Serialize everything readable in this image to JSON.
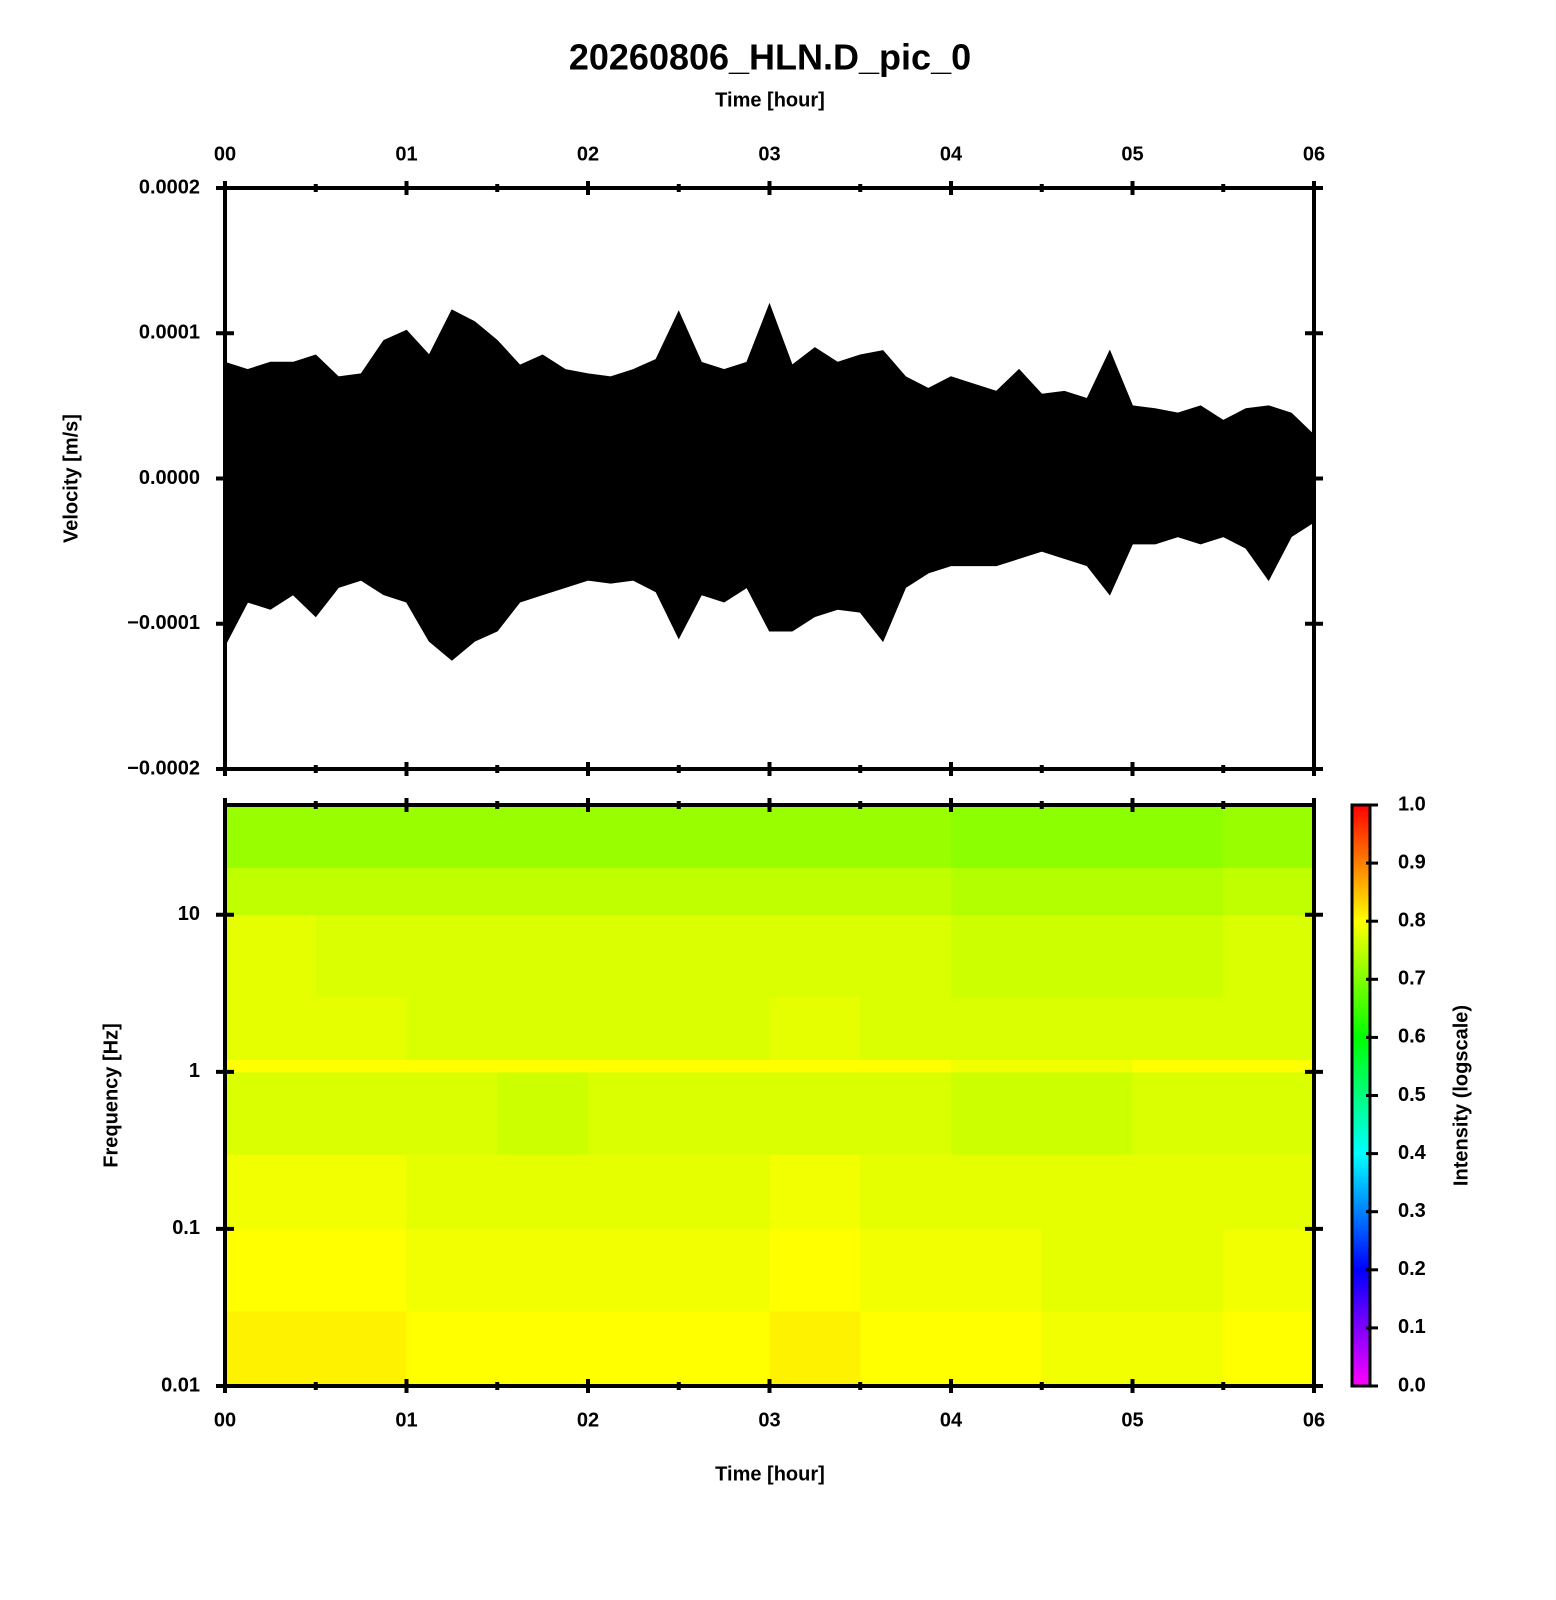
{
  "chart_data": [
    {
      "type": "band",
      "title": "20260806_HLN.D_pic_0",
      "xlabel": "Time [hour]",
      "xaxis_position": "top",
      "ylabel": "Velocity [m/s]",
      "color": "#000000",
      "xlim": [
        0,
        6
      ],
      "xticks": [
        {
          "value": 0,
          "label": "00"
        },
        {
          "value": 1,
          "label": "01"
        },
        {
          "value": 2,
          "label": "02"
        },
        {
          "value": 3,
          "label": "03"
        },
        {
          "value": 4,
          "label": "04"
        },
        {
          "value": 5,
          "label": "05"
        },
        {
          "value": 6,
          "label": "06"
        }
      ],
      "xticks_minor": [
        0.5,
        1.5,
        2.5,
        3.5,
        4.5,
        5.5
      ],
      "ylim": [
        -0.0002,
        0.0002
      ],
      "yticks": [
        {
          "value": -0.0002,
          "label": "−0.0002"
        },
        {
          "value": -0.0001,
          "label": "−0.0001"
        },
        {
          "value": 0,
          "label": "0.0000"
        },
        0.0001,
        0.0002
      ],
      "x": [
        0,
        0.125,
        0.25,
        0.375,
        0.5,
        0.625,
        0.75,
        0.875,
        1,
        1.125,
        1.25,
        1.375,
        1.5,
        1.625,
        1.75,
        1.875,
        2,
        2.125,
        2.25,
        2.375,
        2.5,
        2.625,
        2.75,
        2.875,
        3,
        3.125,
        3.25,
        3.375,
        3.5,
        3.625,
        3.75,
        3.875,
        4,
        4.125,
        4.25,
        4.375,
        4.5,
        4.625,
        4.75,
        4.875,
        5,
        5.125,
        5.25,
        5.375,
        5.5,
        5.625,
        5.75,
        5.875,
        6
      ],
      "max": [
        8e-05,
        7.5e-05,
        8e-05,
        8e-05,
        8.5e-05,
        7e-05,
        7.2e-05,
        9.5e-05,
        0.000102,
        8.5e-05,
        0.000116,
        0.000108,
        9.5e-05,
        7.8e-05,
        8.5e-05,
        7.5e-05,
        7.2e-05,
        7e-05,
        7.5e-05,
        8.2e-05,
        0.000115,
        8e-05,
        7.5e-05,
        8e-05,
        0.00012,
        7.8e-05,
        9e-05,
        8e-05,
        8.5e-05,
        8.8e-05,
        7e-05,
        6.2e-05,
        7e-05,
        6.5e-05,
        6e-05,
        7.5e-05,
        5.8e-05,
        6e-05,
        5.5e-05,
        8.8e-05,
        5e-05,
        4.8e-05,
        4.5e-05,
        5e-05,
        4e-05,
        4.8e-05,
        5e-05,
        4.5e-05,
        3e-05
      ],
      "min": [
        -0.000115,
        -8.5e-05,
        -9e-05,
        -8e-05,
        -9.5e-05,
        -7.5e-05,
        -7e-05,
        -8e-05,
        -8.5e-05,
        -0.000112,
        -0.000125,
        -0.000112,
        -0.000105,
        -8.5e-05,
        -8e-05,
        -7.5e-05,
        -7e-05,
        -7.2e-05,
        -7e-05,
        -7.8e-05,
        -0.00011,
        -8e-05,
        -8.5e-05,
        -7.5e-05,
        -0.000105,
        -0.000105,
        -9.5e-05,
        -9e-05,
        -9.2e-05,
        -0.000112,
        -7.5e-05,
        -6.5e-05,
        -6e-05,
        -6e-05,
        -6e-05,
        -5.5e-05,
        -5e-05,
        -5.5e-05,
        -6e-05,
        -8e-05,
        -4.5e-05,
        -4.5e-05,
        -4e-05,
        -4.5e-05,
        -4e-05,
        -4.8e-05,
        -7e-05,
        -4e-05,
        -3e-05
      ]
    },
    {
      "type": "heatmap",
      "xlabel": "Time [hour]",
      "xaxis_position": "bottom",
      "ylabel": "Frequency [Hz]",
      "log_y": true,
      "xlim": [
        0,
        6
      ],
      "xticks": [
        {
          "value": 0,
          "label": "00"
        },
        {
          "value": 1,
          "label": "01"
        },
        {
          "value": 2,
          "label": "02"
        },
        {
          "value": 3,
          "label": "03"
        },
        {
          "value": 4,
          "label": "04"
        },
        {
          "value": 5,
          "label": "05"
        },
        {
          "value": 6,
          "label": "06"
        }
      ],
      "xticks_minor": [
        0.5,
        1.5,
        2.5,
        3.5,
        4.5,
        5.5
      ],
      "ylim": [
        0.01,
        50
      ],
      "yticks": [
        0.01,
        0.1,
        1,
        10
      ],
      "x_bins": [
        0,
        0.5,
        1,
        1.5,
        2,
        2.5,
        3,
        3.5,
        4,
        4.5,
        5,
        5.5,
        6
      ],
      "y_bins": [
        0.01,
        0.03,
        0.1,
        0.3,
        1,
        1.2,
        3,
        10,
        20,
        50
      ],
      "values": [
        [
          0.81,
          0.81,
          0.8,
          0.8,
          0.8,
          0.8,
          0.81,
          0.8,
          0.8,
          0.79,
          0.79,
          0.8
        ],
        [
          0.8,
          0.8,
          0.79,
          0.79,
          0.79,
          0.79,
          0.8,
          0.79,
          0.79,
          0.78,
          0.78,
          0.79
        ],
        [
          0.79,
          0.79,
          0.78,
          0.78,
          0.78,
          0.78,
          0.79,
          0.78,
          0.78,
          0.78,
          0.78,
          0.78
        ],
        [
          0.77,
          0.77,
          0.77,
          0.76,
          0.77,
          0.77,
          0.77,
          0.77,
          0.76,
          0.76,
          0.77,
          0.77
        ],
        [
          0.8,
          0.8,
          0.8,
          0.8,
          0.8,
          0.8,
          0.8,
          0.8,
          0.79,
          0.79,
          0.8,
          0.8
        ],
        [
          0.78,
          0.78,
          0.77,
          0.77,
          0.77,
          0.77,
          0.78,
          0.77,
          0.77,
          0.77,
          0.77,
          0.77
        ],
        [
          0.78,
          0.77,
          0.77,
          0.77,
          0.77,
          0.77,
          0.77,
          0.77,
          0.76,
          0.76,
          0.76,
          0.77
        ],
        [
          0.75,
          0.75,
          0.75,
          0.75,
          0.75,
          0.75,
          0.75,
          0.75,
          0.74,
          0.74,
          0.74,
          0.75
        ],
        [
          0.72,
          0.72,
          0.72,
          0.72,
          0.72,
          0.72,
          0.72,
          0.72,
          0.71,
          0.71,
          0.71,
          0.72
        ]
      ],
      "colorbar": {
        "label": "Intensity (logscale)",
        "lim": [
          0,
          1
        ],
        "ticks": [
          {
            "value": 0,
            "label": "0.0"
          },
          0.1,
          0.2,
          0.3,
          0.4,
          0.5,
          0.6,
          0.7,
          0.8,
          0.9,
          {
            "value": 1,
            "label": "1.0"
          }
        ],
        "colormap": [
          "#ff00ff",
          "#0000ff",
          "#00ffff",
          "#00ff00",
          "#ffff00",
          "#ff0000"
        ]
      }
    }
  ]
}
